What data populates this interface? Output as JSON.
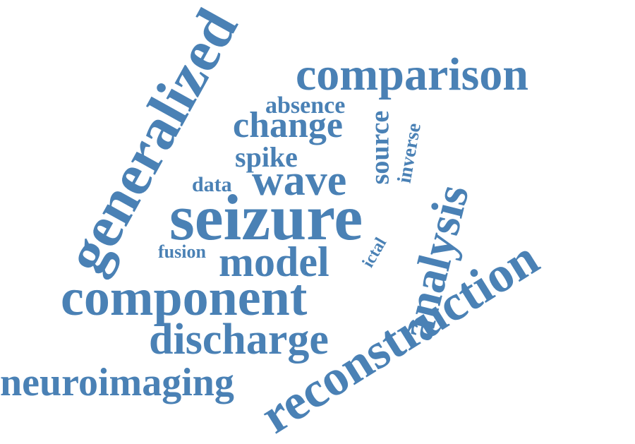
{
  "cloud": {
    "color": "#4a81b5",
    "words": {
      "generalized": "generalized",
      "comparison": "comparison",
      "absence": "absence",
      "change": "change",
      "source": "source",
      "inverse": "inverse",
      "spike": "spike",
      "data": "data",
      "wave": "wave",
      "seizure": "seizure",
      "analysis": "analysis",
      "fusion": "fusion",
      "ictal": "ictal",
      "model": "model",
      "component": "component",
      "reconstruction": "reconstruction",
      "discharge": "discharge",
      "neuroimaging": "neuroimaging"
    }
  }
}
